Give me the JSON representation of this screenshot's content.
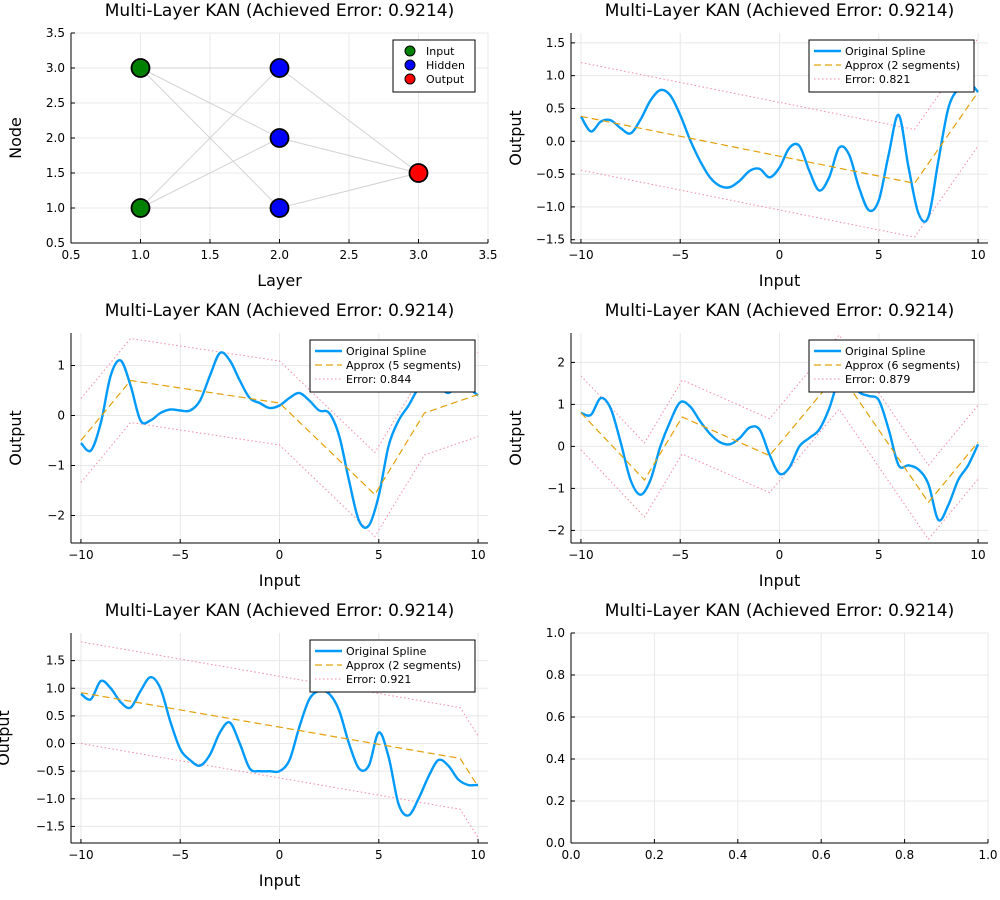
{
  "figure": {
    "panels": [
      {
        "title": "Multi-Layer KAN (Achieved Error: 0.9214)",
        "xlabel": "Layer",
        "ylabel": "Node"
      },
      {
        "title": "Multi-Layer KAN (Achieved Error: 0.9214)",
        "xlabel": "Input",
        "ylabel": "Output"
      },
      {
        "title": "Multi-Layer KAN (Achieved Error: 0.9214)",
        "xlabel": "Input",
        "ylabel": "Output"
      },
      {
        "title": "Multi-Layer KAN (Achieved Error: 0.9214)",
        "xlabel": "Input",
        "ylabel": "Output"
      },
      {
        "title": "Multi-Layer KAN (Achieved Error: 0.9214)",
        "xlabel": "Input",
        "ylabel": "Output"
      },
      {
        "title": "Multi-Layer KAN (Achieved Error: 0.9214)",
        "xlabel": "",
        "ylabel": ""
      }
    ]
  },
  "colors": {
    "spline": "#009AFA",
    "approx": "#E3A008",
    "error": "#F28BA0",
    "input": "#008000",
    "hidden": "#0000FF",
    "output": "#FF0000",
    "edge": "#D3D3D3",
    "grid": "#E8E8E8"
  },
  "chart_data": [
    {
      "type": "scatter",
      "title": "Multi-Layer KAN (Achieved Error: 0.9214)",
      "xlabel": "Layer",
      "ylabel": "Node",
      "xlim": [
        0.5,
        3.5
      ],
      "ylim": [
        0.5,
        3.5
      ],
      "xticks": [
        0.5,
        1.0,
        1.5,
        2.0,
        2.5,
        3.0,
        3.5
      ],
      "yticks": [
        0.5,
        1.0,
        1.5,
        2.0,
        2.5,
        3.0,
        3.5
      ],
      "tick_labels_x": [
        "0.5",
        "1.0",
        "1.5",
        "2.0",
        "2.5",
        "3.0",
        "3.5"
      ],
      "tick_labels_y": [
        "0.5",
        "1.0",
        "1.5",
        "2.0",
        "2.5",
        "3.0",
        "3.5"
      ],
      "legend_position": "top-right",
      "series": [
        {
          "name": "Input",
          "color": "#008000",
          "x": [
            1,
            1
          ],
          "y": [
            1,
            3
          ]
        },
        {
          "name": "Hidden",
          "color": "#0000FF",
          "x": [
            2,
            2,
            2
          ],
          "y": [
            1,
            2,
            3
          ]
        },
        {
          "name": "Output",
          "color": "#FF0000",
          "x": [
            3
          ],
          "y": [
            1.5
          ]
        }
      ],
      "edges": [
        [
          [
            1,
            1
          ],
          [
            2,
            1
          ]
        ],
        [
          [
            1,
            1
          ],
          [
            2,
            2
          ]
        ],
        [
          [
            1,
            1
          ],
          [
            2,
            3
          ]
        ],
        [
          [
            1,
            3
          ],
          [
            2,
            1
          ]
        ],
        [
          [
            1,
            3
          ],
          [
            2,
            2
          ]
        ],
        [
          [
            1,
            3
          ],
          [
            2,
            3
          ]
        ],
        [
          [
            2,
            1
          ],
          [
            3,
            1.5
          ]
        ],
        [
          [
            2,
            2
          ],
          [
            3,
            1.5
          ]
        ],
        [
          [
            2,
            3
          ],
          [
            3,
            1.5
          ]
        ]
      ]
    },
    {
      "type": "line",
      "title": "Multi-Layer KAN (Achieved Error: 0.9214)",
      "xlabel": "Input",
      "ylabel": "Output",
      "xlim": [
        -10.5,
        10.5
      ],
      "ylim": [
        -1.55,
        1.65
      ],
      "xticks": [
        -10,
        -5,
        0,
        5,
        10
      ],
      "tick_labels_x": [
        "−10",
        "−5",
        "0",
        "5",
        "10"
      ],
      "yticks": [
        -1.5,
        -1.0,
        -0.5,
        0.0,
        0.5,
        1.0,
        1.5
      ],
      "tick_labels_y": [
        "−1.5",
        "−1.0",
        "−0.5",
        "0.0",
        "0.5",
        "1.0",
        "1.5"
      ],
      "legend_position": "top-right",
      "legend": [
        "Original Spline",
        "Approx (2 segments)",
        "Error: 0.821"
      ],
      "series": [
        {
          "name": "Original Spline",
          "x": [
            -10,
            -9.5,
            -9,
            -8.5,
            -8,
            -7.5,
            -7,
            -6.5,
            -6,
            -5.5,
            -5,
            -4.5,
            -4,
            -3.5,
            -3,
            -2.5,
            -2,
            -1.5,
            -1,
            -0.5,
            0,
            0.5,
            1,
            1.5,
            2,
            2.5,
            3,
            3.5,
            4,
            4.5,
            5,
            5.5,
            6,
            6.5,
            7,
            7.5,
            8,
            8.5,
            9,
            9.5,
            10
          ],
          "y": [
            0.38,
            0.15,
            0.3,
            0.32,
            0.2,
            0.12,
            0.33,
            0.62,
            0.78,
            0.7,
            0.4,
            0.02,
            -0.3,
            -0.55,
            -0.68,
            -0.7,
            -0.6,
            -0.45,
            -0.42,
            -0.55,
            -0.4,
            -0.1,
            -0.07,
            -0.45,
            -0.75,
            -0.55,
            -0.1,
            -0.2,
            -0.7,
            -1.05,
            -0.9,
            -0.2,
            0.4,
            -0.4,
            -1.1,
            -1.15,
            -0.3,
            0.5,
            0.8,
            0.9,
            0.75
          ]
        },
        {
          "name": "Approx (2 segments)",
          "x": [
            -10,
            6.8,
            10
          ],
          "y": [
            0.38,
            -0.64,
            0.75
          ]
        },
        {
          "name": "Error: 0.821 (upper)",
          "x": [
            -10,
            6.8,
            10
          ],
          "y": [
            1.2,
            0.18,
            1.57
          ]
        },
        {
          "name": "Error: 0.821 (lower)",
          "x": [
            -10,
            6.8,
            10
          ],
          "y": [
            -0.44,
            -1.46,
            -0.07
          ]
        }
      ]
    },
    {
      "type": "line",
      "title": "Multi-Layer KAN (Achieved Error: 0.9214)",
      "xlabel": "Input",
      "ylabel": "Output",
      "xlim": [
        -10.5,
        10.5
      ],
      "ylim": [
        -2.55,
        1.65
      ],
      "xticks": [
        -10,
        -5,
        0,
        5,
        10
      ],
      "tick_labels_x": [
        "−10",
        "−5",
        "0",
        "5",
        "10"
      ],
      "yticks": [
        -2,
        -1,
        0,
        1
      ],
      "tick_labels_y": [
        "−2",
        "−1",
        "0",
        "1"
      ],
      "legend_position": "top-right",
      "legend": [
        "Original Spline",
        "Approx (5 segments)",
        "Error: 0.844"
      ],
      "series": [
        {
          "name": "Original Spline",
          "x": [
            -10,
            -9.5,
            -9,
            -8.5,
            -8,
            -7.5,
            -7,
            -6.5,
            -6,
            -5.5,
            -5,
            -4.5,
            -4,
            -3.5,
            -3,
            -2.5,
            -2,
            -1.5,
            -1,
            -0.5,
            0,
            0.5,
            1,
            1.5,
            2,
            2.5,
            3,
            3.5,
            4,
            4.5,
            5,
            5.5,
            6,
            6.5,
            7,
            7.5,
            8,
            8.5,
            9,
            9.5,
            10
          ],
          "y": [
            -0.55,
            -0.7,
            -0.15,
            0.8,
            1.1,
            0.6,
            -0.1,
            -0.1,
            0.05,
            0.12,
            0.1,
            0.1,
            0.3,
            0.8,
            1.25,
            1.1,
            0.7,
            0.35,
            0.25,
            0.15,
            0.2,
            0.35,
            0.45,
            0.3,
            0.1,
            0.05,
            -0.4,
            -1.3,
            -2.1,
            -2.2,
            -1.6,
            -0.6,
            -0.1,
            0.2,
            0.55,
            0.75,
            0.6,
            0.45,
            0.6,
            0.55,
            0.4
          ]
        },
        {
          "name": "Approx (5 segments)",
          "x": [
            -10,
            -7.5,
            0,
            4.8,
            7.3,
            10
          ],
          "y": [
            -0.5,
            0.7,
            0.25,
            -1.58,
            0.05,
            0.42
          ]
        },
        {
          "name": "Error: 0.844 (upper)",
          "x": [
            -10,
            -7.5,
            0,
            4.8,
            7.3,
            10
          ],
          "y": [
            0.34,
            1.54,
            1.09,
            -0.74,
            0.89,
            1.26
          ]
        },
        {
          "name": "Error: 0.844 (lower)",
          "x": [
            -10,
            -7.5,
            0,
            4.8,
            7.3,
            10
          ],
          "y": [
            -1.34,
            -0.14,
            -0.59,
            -2.42,
            -0.79,
            -0.42
          ]
        }
      ]
    },
    {
      "type": "line",
      "title": "Multi-Layer KAN (Achieved Error: 0.9214)",
      "xlabel": "Input",
      "ylabel": "Output",
      "xlim": [
        -10.5,
        10.5
      ],
      "ylim": [
        -2.3,
        2.7
      ],
      "xticks": [
        -10,
        -5,
        0,
        5,
        10
      ],
      "tick_labels_x": [
        "−10",
        "−5",
        "0",
        "5",
        "10"
      ],
      "yticks": [
        -2,
        -1,
        0,
        1,
        2
      ],
      "tick_labels_y": [
        "−2",
        "−1",
        "0",
        "1",
        "2"
      ],
      "legend_position": "top-right",
      "legend": [
        "Original Spline",
        "Approx (6 segments)",
        "Error: 0.879"
      ],
      "series": [
        {
          "name": "Original Spline",
          "x": [
            -10,
            -9.5,
            -9,
            -8.5,
            -8,
            -7.5,
            -7,
            -6.5,
            -6,
            -5.5,
            -5,
            -4.5,
            -4,
            -3.5,
            -3,
            -2.5,
            -2,
            -1.5,
            -1,
            -0.5,
            0,
            0.5,
            1,
            1.5,
            2,
            2.5,
            3,
            3.5,
            4,
            4.5,
            5,
            5.5,
            6,
            6.5,
            7,
            7.5,
            8,
            8.5,
            9,
            9.5,
            10
          ],
          "y": [
            0.8,
            0.75,
            1.15,
            0.9,
            0.1,
            -0.8,
            -1.15,
            -0.8,
            0.0,
            0.6,
            1.05,
            0.95,
            0.6,
            0.3,
            0.1,
            0.05,
            0.2,
            0.45,
            0.4,
            -0.2,
            -0.65,
            -0.5,
            0.0,
            0.2,
            0.4,
            0.9,
            1.6,
            1.7,
            1.3,
            1.2,
            1.1,
            0.4,
            -0.45,
            -0.45,
            -0.55,
            -0.9,
            -1.75,
            -1.4,
            -0.8,
            -0.45,
            0.05
          ]
        },
        {
          "name": "Approx (6 segments)",
          "x": [
            -10,
            -6.8,
            -4.9,
            -0.5,
            3.0,
            7.5,
            10
          ],
          "y": [
            0.8,
            -0.8,
            0.7,
            -0.22,
            1.77,
            -1.33,
            0.1
          ]
        },
        {
          "name": "Error: 0.879 (upper)",
          "x": [
            -10,
            -6.8,
            -4.9,
            -0.5,
            3.0,
            7.5,
            10
          ],
          "y": [
            1.68,
            0.08,
            1.58,
            0.66,
            2.65,
            -0.45,
            0.98
          ]
        },
        {
          "name": "Error: 0.879 (lower)",
          "x": [
            -10,
            -6.8,
            -4.9,
            -0.5,
            3.0,
            7.5,
            10
          ],
          "y": [
            -0.08,
            -1.68,
            -0.18,
            -1.1,
            0.89,
            -2.21,
            -0.78
          ]
        }
      ]
    },
    {
      "type": "line",
      "title": "Multi-Layer KAN (Achieved Error: 0.9214)",
      "xlabel": "Input",
      "ylabel": "Output",
      "xlim": [
        -10.5,
        10.5
      ],
      "ylim": [
        -1.8,
        2.0
      ],
      "xticks": [
        -10,
        -5,
        0,
        5,
        10
      ],
      "tick_labels_x": [
        "−10",
        "−5",
        "0",
        "5",
        "10"
      ],
      "yticks": [
        -1.5,
        -1.0,
        -0.5,
        0.0,
        0.5,
        1.0,
        1.5
      ],
      "tick_labels_y": [
        "−1.5",
        "−1.0",
        "−0.5",
        "0.0",
        "0.5",
        "1.0",
        "1.5"
      ],
      "legend_position": "top-right",
      "legend": [
        "Original Spline",
        "Approx (2 segments)",
        "Error: 0.921"
      ],
      "series": [
        {
          "name": "Original Spline",
          "x": [
            -10,
            -9.5,
            -9,
            -8.5,
            -8,
            -7.5,
            -7,
            -6.5,
            -6,
            -5.5,
            -5,
            -4.5,
            -4,
            -3.5,
            -3,
            -2.5,
            -2,
            -1.5,
            -1,
            -0.5,
            0,
            0.5,
            1,
            1.5,
            2,
            2.5,
            3,
            3.5,
            4,
            4.5,
            5,
            5.5,
            6,
            6.5,
            7,
            7.5,
            8,
            8.5,
            9,
            9.5,
            10
          ],
          "y": [
            0.9,
            0.8,
            1.13,
            1.0,
            0.75,
            0.65,
            0.95,
            1.2,
            1.0,
            0.4,
            -0.1,
            -0.3,
            -0.4,
            -0.2,
            0.2,
            0.38,
            0.0,
            -0.45,
            -0.5,
            -0.5,
            -0.5,
            -0.3,
            0.3,
            0.8,
            0.95,
            0.9,
            0.6,
            0.0,
            -0.45,
            -0.4,
            0.2,
            -0.25,
            -1.1,
            -1.3,
            -1.0,
            -0.6,
            -0.3,
            -0.4,
            -0.65,
            -0.75,
            -0.75
          ]
        },
        {
          "name": "Approx (2 segments)",
          "x": [
            -10,
            9.1,
            10
          ],
          "y": [
            0.92,
            -0.27,
            -0.78
          ]
        },
        {
          "name": "Error: 0.921 (upper)",
          "x": [
            -10,
            9.1,
            10
          ],
          "y": [
            1.84,
            0.65,
            0.14
          ]
        },
        {
          "name": "Error: 0.921 (lower)",
          "x": [
            -10,
            9.1,
            10
          ],
          "y": [
            0.0,
            -1.19,
            -1.7
          ]
        }
      ]
    },
    {
      "type": "line",
      "title": "Multi-Layer KAN (Achieved Error: 0.9214)",
      "xlabel": "",
      "ylabel": "",
      "xlim": [
        0,
        1
      ],
      "ylim": [
        0,
        1
      ],
      "xticks": [
        0,
        0.2,
        0.4,
        0.6,
        0.8,
        1.0
      ],
      "tick_labels_x": [
        "0.0",
        "0.2",
        "0.4",
        "0.6",
        "0.8",
        "1.0"
      ],
      "yticks": [
        0,
        0.2,
        0.4,
        0.6,
        0.8,
        1.0
      ],
      "tick_labels_y": [
        "0.0",
        "0.2",
        "0.4",
        "0.6",
        "0.8",
        "1.0"
      ],
      "series": []
    }
  ]
}
